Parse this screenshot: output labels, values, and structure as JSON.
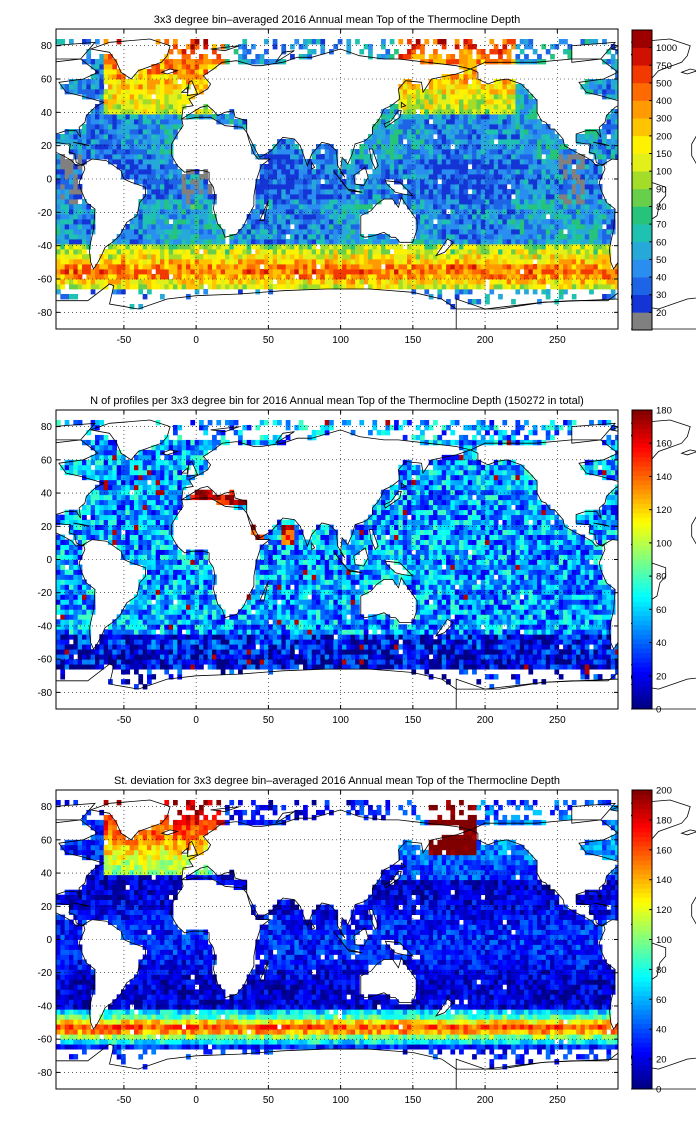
{
  "chart_data": [
    {
      "type": "heatmap",
      "title": "3x3 degree bin–averaged 2016 Annual mean Top of the Thermocline Depth",
      "xticks": [
        -50,
        0,
        50,
        100,
        150,
        200,
        250
      ],
      "yticks": [
        80,
        60,
        40,
        20,
        0,
        -20,
        -40,
        -60,
        -80
      ],
      "xlim": [
        -97,
        292
      ],
      "ylim": [
        -90,
        90
      ],
      "grid": true,
      "colorbar": {
        "type": "discrete",
        "labels": [
          "20",
          "30",
          "40",
          "50",
          "60",
          "70",
          "80",
          "90",
          "100",
          "150",
          "200",
          "300",
          "400",
          "500",
          "750",
          "1000"
        ],
        "colors": [
          "#808080",
          "#1434d6",
          "#1e64e6",
          "#2a8ef0",
          "#26a9d9",
          "#1fc2b0",
          "#25c47a",
          "#67cf4a",
          "#a4dc2a",
          "#e2ef19",
          "#fff200",
          "#ffc400",
          "#ff9a00",
          "#ff6a00",
          "#f23a00",
          "#d01000",
          "#9e0000"
        ]
      }
    },
    {
      "type": "heatmap",
      "title": "N of profiles per 3x3 degree bin for 2016 Annual mean Top of the Thermocline Depth  (150272 in total)",
      "xticks": [
        -50,
        0,
        50,
        100,
        150,
        200,
        250
      ],
      "yticks": [
        80,
        60,
        40,
        20,
        0,
        -20,
        -40,
        -60,
        -80
      ],
      "xlim": [
        -97,
        292
      ],
      "ylim": [
        -90,
        90
      ],
      "grid": true,
      "colorbar": {
        "type": "continuous",
        "colormap": "jet",
        "range": [
          0,
          180
        ],
        "ticks": [
          "0",
          "20",
          "40",
          "60",
          "80",
          "100",
          "120",
          "140",
          "160",
          "180"
        ]
      }
    },
    {
      "type": "heatmap",
      "title": "St. deviation for 3x3 degree bin–averaged 2016 Annual mean Top of the Thermocline Depth",
      "xticks": [
        -50,
        0,
        50,
        100,
        150,
        200,
        250
      ],
      "yticks": [
        80,
        60,
        40,
        20,
        0,
        -20,
        -40,
        -60,
        -80
      ],
      "xlim": [
        -97,
        292
      ],
      "ylim": [
        -90,
        90
      ],
      "grid": true,
      "colorbar": {
        "type": "continuous",
        "colormap": "jet",
        "range": [
          0,
          200
        ],
        "ticks": [
          "0",
          "20",
          "40",
          "60",
          "80",
          "100",
          "120",
          "140",
          "160",
          "180",
          "200"
        ]
      }
    }
  ]
}
